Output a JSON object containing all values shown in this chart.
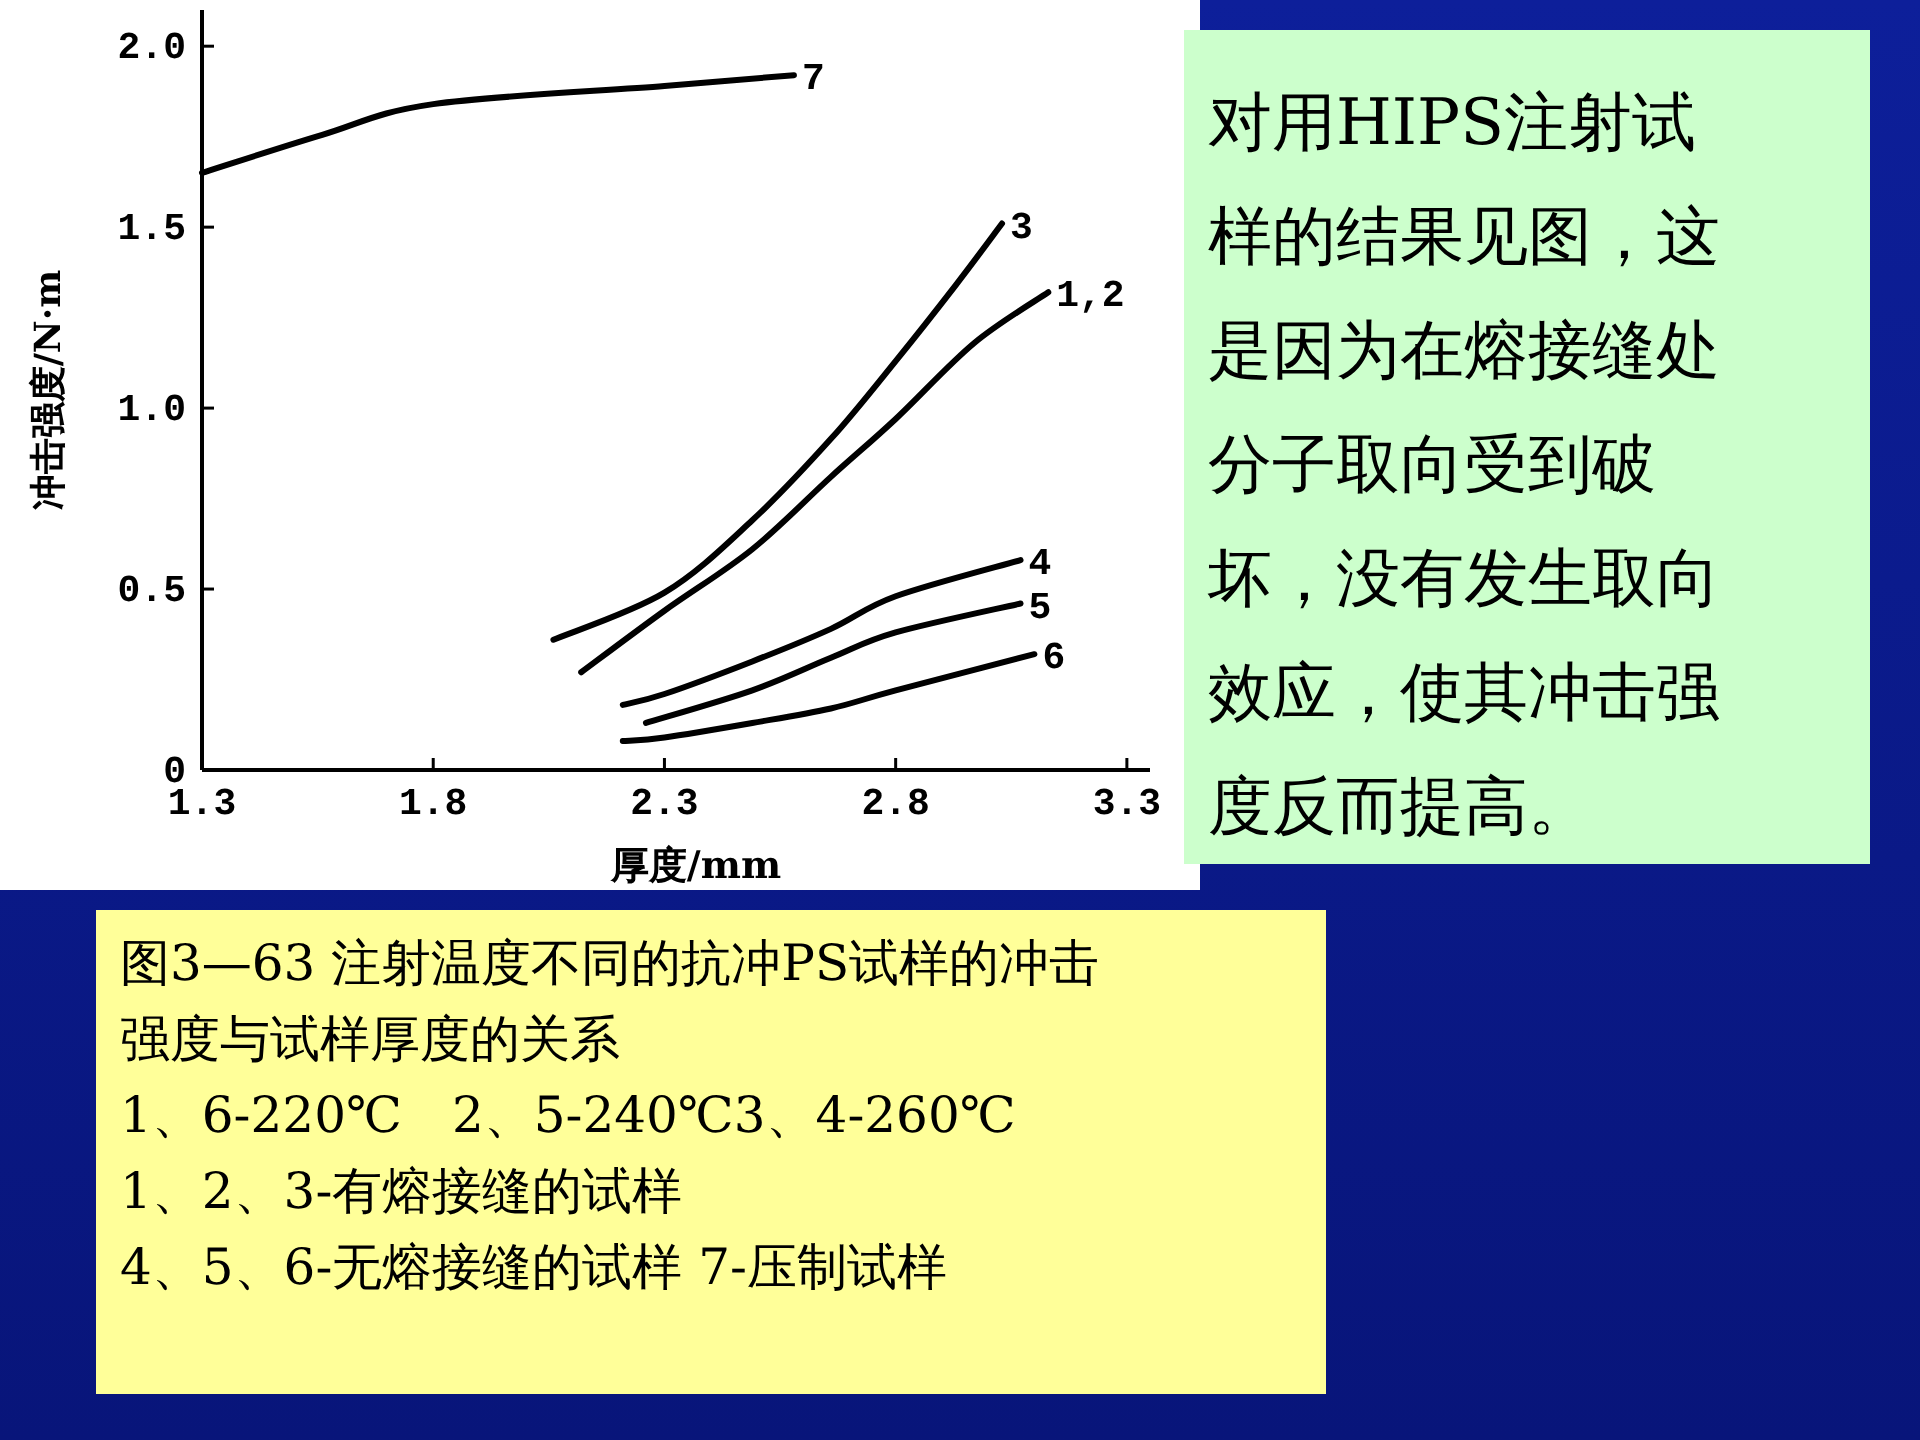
{
  "chart_data": {
    "type": "line",
    "xlabel": "厚度/mm",
    "ylabel": "冲击强度/N·m",
    "xlim": [
      1.3,
      3.35
    ],
    "ylim": [
      0,
      2.1
    ],
    "xticks": [
      1.3,
      1.8,
      2.3,
      2.8,
      3.3
    ],
    "yticks": [
      0,
      0.5,
      {
        "value": 1,
        "label": "1.0"
      },
      1.5,
      {
        "value": 2,
        "label": "2.0"
      }
    ],
    "grid": false,
    "legend": false,
    "marker": "none",
    "line_style": "solid",
    "series": [
      {
        "name": "7",
        "color": "#000000",
        "x": [
          1.3,
          1.56,
          1.8,
          2.3,
          2.58
        ],
        "values": [
          1.65,
          1.755,
          1.84,
          1.89,
          1.92
        ]
      },
      {
        "name": "3",
        "color": "#000000",
        "x": [
          2.06,
          2.3,
          2.49,
          2.66,
          2.8,
          2.93,
          3.03
        ],
        "values": [
          0.36,
          0.49,
          0.69,
          0.915,
          1.13,
          1.34,
          1.51
        ]
      },
      {
        "name": "1,2",
        "color": "#000000",
        "x": [
          2.12,
          2.3,
          2.49,
          2.66,
          2.8,
          2.97,
          3.13
        ],
        "values": [
          0.27,
          0.44,
          0.61,
          0.81,
          0.97,
          1.18,
          1.32
        ]
      },
      {
        "name": "4",
        "color": "#000000",
        "x": [
          2.21,
          2.3,
          2.49,
          2.66,
          2.8,
          3.07
        ],
        "values": [
          0.18,
          0.21,
          0.3,
          0.39,
          0.48,
          0.58
        ]
      },
      {
        "name": "5",
        "color": "#000000",
        "x": [
          2.26,
          2.49,
          2.66,
          2.8,
          3.07
        ],
        "values": [
          0.13,
          0.22,
          0.31,
          0.38,
          0.46
        ]
      },
      {
        "name": "6",
        "color": "#000000",
        "x": [
          2.21,
          2.3,
          2.49,
          2.66,
          2.8,
          3.1
        ],
        "values": [
          0.08,
          0.09,
          0.13,
          0.17,
          0.22,
          0.32
        ]
      }
    ],
    "annotations": [
      "对用HIPS注射试样的结果见图，这是因为在熔接缝处分子取向受到破坏，没有发生取向效应，使其冲击强度反而提高。",
      "图3—63 注射温度不同的抗冲PS试样的冲击强度与试样厚度的关系",
      "1、6-220℃　2、5-240℃3、4-260℃",
      "1、2、3-有熔接缝的试样",
      "4、5、6-无熔接缝的试样 7-压制试样"
    ]
  }
}
